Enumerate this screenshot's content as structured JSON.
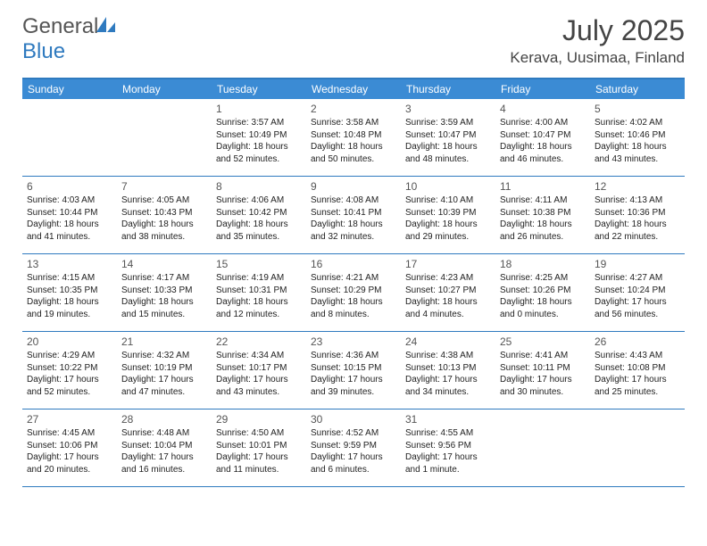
{
  "brand": {
    "name_a": "General",
    "name_b": "Blue"
  },
  "title": "July 2025",
  "location": "Kerava, Uusimaa, Finland",
  "colors": {
    "header_bg": "#3b8bd4",
    "border": "#2f7abf",
    "brand_blue": "#2f7abf",
    "text": "#333333",
    "background": "#ffffff"
  },
  "day_names": [
    "Sunday",
    "Monday",
    "Tuesday",
    "Wednesday",
    "Thursday",
    "Friday",
    "Saturday"
  ],
  "weeks": [
    [
      null,
      null,
      {
        "d": "1",
        "sr": "Sunrise: 3:57 AM",
        "ss": "Sunset: 10:49 PM",
        "dl1": "Daylight: 18 hours",
        "dl2": "and 52 minutes."
      },
      {
        "d": "2",
        "sr": "Sunrise: 3:58 AM",
        "ss": "Sunset: 10:48 PM",
        "dl1": "Daylight: 18 hours",
        "dl2": "and 50 minutes."
      },
      {
        "d": "3",
        "sr": "Sunrise: 3:59 AM",
        "ss": "Sunset: 10:47 PM",
        "dl1": "Daylight: 18 hours",
        "dl2": "and 48 minutes."
      },
      {
        "d": "4",
        "sr": "Sunrise: 4:00 AM",
        "ss": "Sunset: 10:47 PM",
        "dl1": "Daylight: 18 hours",
        "dl2": "and 46 minutes."
      },
      {
        "d": "5",
        "sr": "Sunrise: 4:02 AM",
        "ss": "Sunset: 10:46 PM",
        "dl1": "Daylight: 18 hours",
        "dl2": "and 43 minutes."
      }
    ],
    [
      {
        "d": "6",
        "sr": "Sunrise: 4:03 AM",
        "ss": "Sunset: 10:44 PM",
        "dl1": "Daylight: 18 hours",
        "dl2": "and 41 minutes."
      },
      {
        "d": "7",
        "sr": "Sunrise: 4:05 AM",
        "ss": "Sunset: 10:43 PM",
        "dl1": "Daylight: 18 hours",
        "dl2": "and 38 minutes."
      },
      {
        "d": "8",
        "sr": "Sunrise: 4:06 AM",
        "ss": "Sunset: 10:42 PM",
        "dl1": "Daylight: 18 hours",
        "dl2": "and 35 minutes."
      },
      {
        "d": "9",
        "sr": "Sunrise: 4:08 AM",
        "ss": "Sunset: 10:41 PM",
        "dl1": "Daylight: 18 hours",
        "dl2": "and 32 minutes."
      },
      {
        "d": "10",
        "sr": "Sunrise: 4:10 AM",
        "ss": "Sunset: 10:39 PM",
        "dl1": "Daylight: 18 hours",
        "dl2": "and 29 minutes."
      },
      {
        "d": "11",
        "sr": "Sunrise: 4:11 AM",
        "ss": "Sunset: 10:38 PM",
        "dl1": "Daylight: 18 hours",
        "dl2": "and 26 minutes."
      },
      {
        "d": "12",
        "sr": "Sunrise: 4:13 AM",
        "ss": "Sunset: 10:36 PM",
        "dl1": "Daylight: 18 hours",
        "dl2": "and 22 minutes."
      }
    ],
    [
      {
        "d": "13",
        "sr": "Sunrise: 4:15 AM",
        "ss": "Sunset: 10:35 PM",
        "dl1": "Daylight: 18 hours",
        "dl2": "and 19 minutes."
      },
      {
        "d": "14",
        "sr": "Sunrise: 4:17 AM",
        "ss": "Sunset: 10:33 PM",
        "dl1": "Daylight: 18 hours",
        "dl2": "and 15 minutes."
      },
      {
        "d": "15",
        "sr": "Sunrise: 4:19 AM",
        "ss": "Sunset: 10:31 PM",
        "dl1": "Daylight: 18 hours",
        "dl2": "and 12 minutes."
      },
      {
        "d": "16",
        "sr": "Sunrise: 4:21 AM",
        "ss": "Sunset: 10:29 PM",
        "dl1": "Daylight: 18 hours",
        "dl2": "and 8 minutes."
      },
      {
        "d": "17",
        "sr": "Sunrise: 4:23 AM",
        "ss": "Sunset: 10:27 PM",
        "dl1": "Daylight: 18 hours",
        "dl2": "and 4 minutes."
      },
      {
        "d": "18",
        "sr": "Sunrise: 4:25 AM",
        "ss": "Sunset: 10:26 PM",
        "dl1": "Daylight: 18 hours",
        "dl2": "and 0 minutes."
      },
      {
        "d": "19",
        "sr": "Sunrise: 4:27 AM",
        "ss": "Sunset: 10:24 PM",
        "dl1": "Daylight: 17 hours",
        "dl2": "and 56 minutes."
      }
    ],
    [
      {
        "d": "20",
        "sr": "Sunrise: 4:29 AM",
        "ss": "Sunset: 10:22 PM",
        "dl1": "Daylight: 17 hours",
        "dl2": "and 52 minutes."
      },
      {
        "d": "21",
        "sr": "Sunrise: 4:32 AM",
        "ss": "Sunset: 10:19 PM",
        "dl1": "Daylight: 17 hours",
        "dl2": "and 47 minutes."
      },
      {
        "d": "22",
        "sr": "Sunrise: 4:34 AM",
        "ss": "Sunset: 10:17 PM",
        "dl1": "Daylight: 17 hours",
        "dl2": "and 43 minutes."
      },
      {
        "d": "23",
        "sr": "Sunrise: 4:36 AM",
        "ss": "Sunset: 10:15 PM",
        "dl1": "Daylight: 17 hours",
        "dl2": "and 39 minutes."
      },
      {
        "d": "24",
        "sr": "Sunrise: 4:38 AM",
        "ss": "Sunset: 10:13 PM",
        "dl1": "Daylight: 17 hours",
        "dl2": "and 34 minutes."
      },
      {
        "d": "25",
        "sr": "Sunrise: 4:41 AM",
        "ss": "Sunset: 10:11 PM",
        "dl1": "Daylight: 17 hours",
        "dl2": "and 30 minutes."
      },
      {
        "d": "26",
        "sr": "Sunrise: 4:43 AM",
        "ss": "Sunset: 10:08 PM",
        "dl1": "Daylight: 17 hours",
        "dl2": "and 25 minutes."
      }
    ],
    [
      {
        "d": "27",
        "sr": "Sunrise: 4:45 AM",
        "ss": "Sunset: 10:06 PM",
        "dl1": "Daylight: 17 hours",
        "dl2": "and 20 minutes."
      },
      {
        "d": "28",
        "sr": "Sunrise: 4:48 AM",
        "ss": "Sunset: 10:04 PM",
        "dl1": "Daylight: 17 hours",
        "dl2": "and 16 minutes."
      },
      {
        "d": "29",
        "sr": "Sunrise: 4:50 AM",
        "ss": "Sunset: 10:01 PM",
        "dl1": "Daylight: 17 hours",
        "dl2": "and 11 minutes."
      },
      {
        "d": "30",
        "sr": "Sunrise: 4:52 AM",
        "ss": "Sunset: 9:59 PM",
        "dl1": "Daylight: 17 hours",
        "dl2": "and 6 minutes."
      },
      {
        "d": "31",
        "sr": "Sunrise: 4:55 AM",
        "ss": "Sunset: 9:56 PM",
        "dl1": "Daylight: 17 hours",
        "dl2": "and 1 minute."
      },
      null,
      null
    ]
  ]
}
